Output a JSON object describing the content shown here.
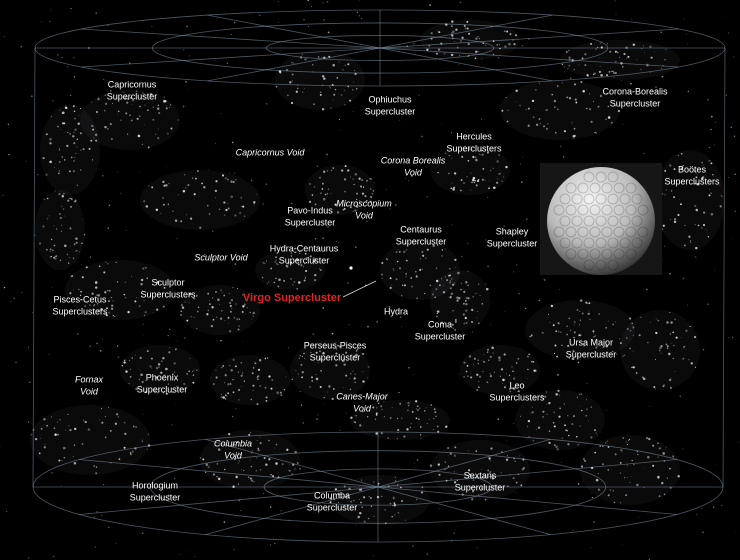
{
  "labels": [
    {
      "lines": [
        "Capricornus",
        "Supercluster"
      ]
    },
    {
      "lines": [
        "Ophiuchus",
        "Supercluster"
      ]
    },
    {
      "lines": [
        "Corona-Borealis",
        "Supercluster"
      ]
    },
    {
      "lines": [
        "Capricornus Void"
      ]
    },
    {
      "lines": [
        "Hercules",
        "Superclusters"
      ]
    },
    {
      "lines": [
        "Corona Borealis",
        "Void"
      ]
    },
    {
      "lines": [
        "Boötes",
        "Superclusters"
      ]
    },
    {
      "lines": [
        "Microscopium",
        "Void"
      ]
    },
    {
      "lines": [
        "Pavo-Indus",
        "Supercluster"
      ]
    },
    {
      "lines": [
        "Centaurus",
        "Supercluster"
      ]
    },
    {
      "lines": [
        "Shapley",
        "Supercluster"
      ]
    },
    {
      "lines": [
        "Sculptor Void"
      ]
    },
    {
      "lines": [
        "Hydra-Centaurus",
        "Supercluster"
      ]
    },
    {
      "lines": [
        "Sculptor",
        "Superclusters"
      ]
    },
    {
      "lines": [
        "Pisces-Cetus",
        "Superclusters"
      ]
    },
    {
      "lines": [
        "Virgo Supercluster"
      ]
    },
    {
      "lines": [
        "Hydra"
      ]
    },
    {
      "lines": [
        "Coma",
        "Supercluster"
      ]
    },
    {
      "lines": [
        "Perseus-Pisces",
        "Supercluster"
      ]
    },
    {
      "lines": [
        "Ursa Major",
        "Supercluster"
      ]
    },
    {
      "lines": [
        "Fornax",
        "Void"
      ]
    },
    {
      "lines": [
        "Phoenix",
        "Supercluster"
      ]
    },
    {
      "lines": [
        "Canes-Major",
        "Void"
      ]
    },
    {
      "lines": [
        "Leo",
        "Superclusters"
      ]
    },
    {
      "lines": [
        "Columbia",
        "Void"
      ]
    },
    {
      "lines": [
        "Sextans",
        "Supercluster"
      ]
    },
    {
      "lines": [
        "Horologium",
        "Supercluster"
      ]
    },
    {
      "lines": [
        "Columba",
        "Supercluster"
      ]
    }
  ]
}
